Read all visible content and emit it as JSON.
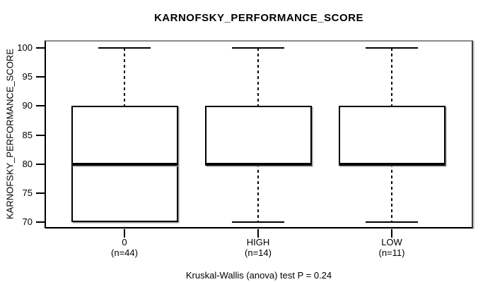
{
  "title": "KARNOFSKY_PERFORMANCE_SCORE",
  "y_axis": {
    "label": "KARNOFSKY_PERFORMANCE_SCORE",
    "ticks": [
      100,
      95,
      90,
      85,
      80,
      75,
      70
    ]
  },
  "footer": "Kruskal-Wallis (anova) test P = 0.24",
  "chart_data": {
    "type": "boxplot",
    "title": "KARNOFSKY_PERFORMANCE_SCORE",
    "ylabel": "KARNOFSKY_PERFORMANCE_SCORE",
    "xlabel": "",
    "ylim": [
      69,
      101
    ],
    "y_ticks": [
      70,
      75,
      80,
      85,
      90,
      95,
      100
    ],
    "grid": false,
    "annotation": "Kruskal-Wallis (anova) test P = 0.24",
    "groups": [
      {
        "label": "0",
        "n_label": "(n=44)",
        "n": 44,
        "whisker_low": 70,
        "q1": 70,
        "median": 80,
        "q3": 90,
        "whisker_high": 100
      },
      {
        "label": "HIGH",
        "n_label": "(n=14)",
        "n": 14,
        "whisker_low": 70,
        "q1": 80,
        "median": 80,
        "q3": 90,
        "whisker_high": 100
      },
      {
        "label": "LOW",
        "n_label": "(n=11)",
        "n": 11,
        "whisker_low": 70,
        "q1": 80,
        "median": 80,
        "q3": 90,
        "whisker_high": 100
      }
    ]
  }
}
